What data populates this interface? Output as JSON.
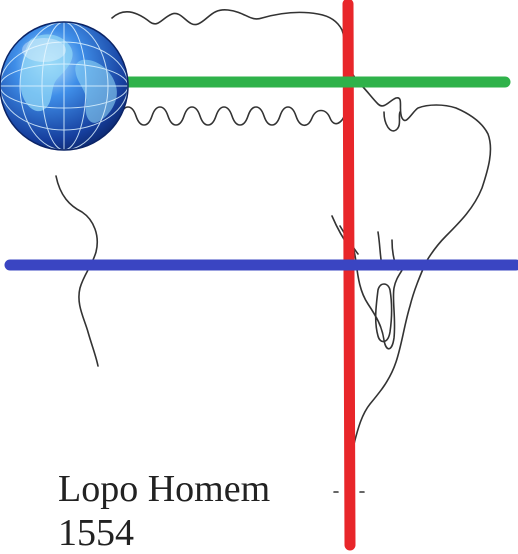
{
  "caption": {
    "cartographer": "Lopo Homem",
    "year": "1554"
  },
  "colors": {
    "coastline": "#333333",
    "meridian_line": "#e8262a",
    "upper_parallel_line": "#2fb24a",
    "lower_parallel_line": "#3a45c2",
    "globe_ocean": "#1f5fd0",
    "globe_land": "#8fd6f5"
  },
  "icons": {
    "globe": "globe-icon"
  }
}
